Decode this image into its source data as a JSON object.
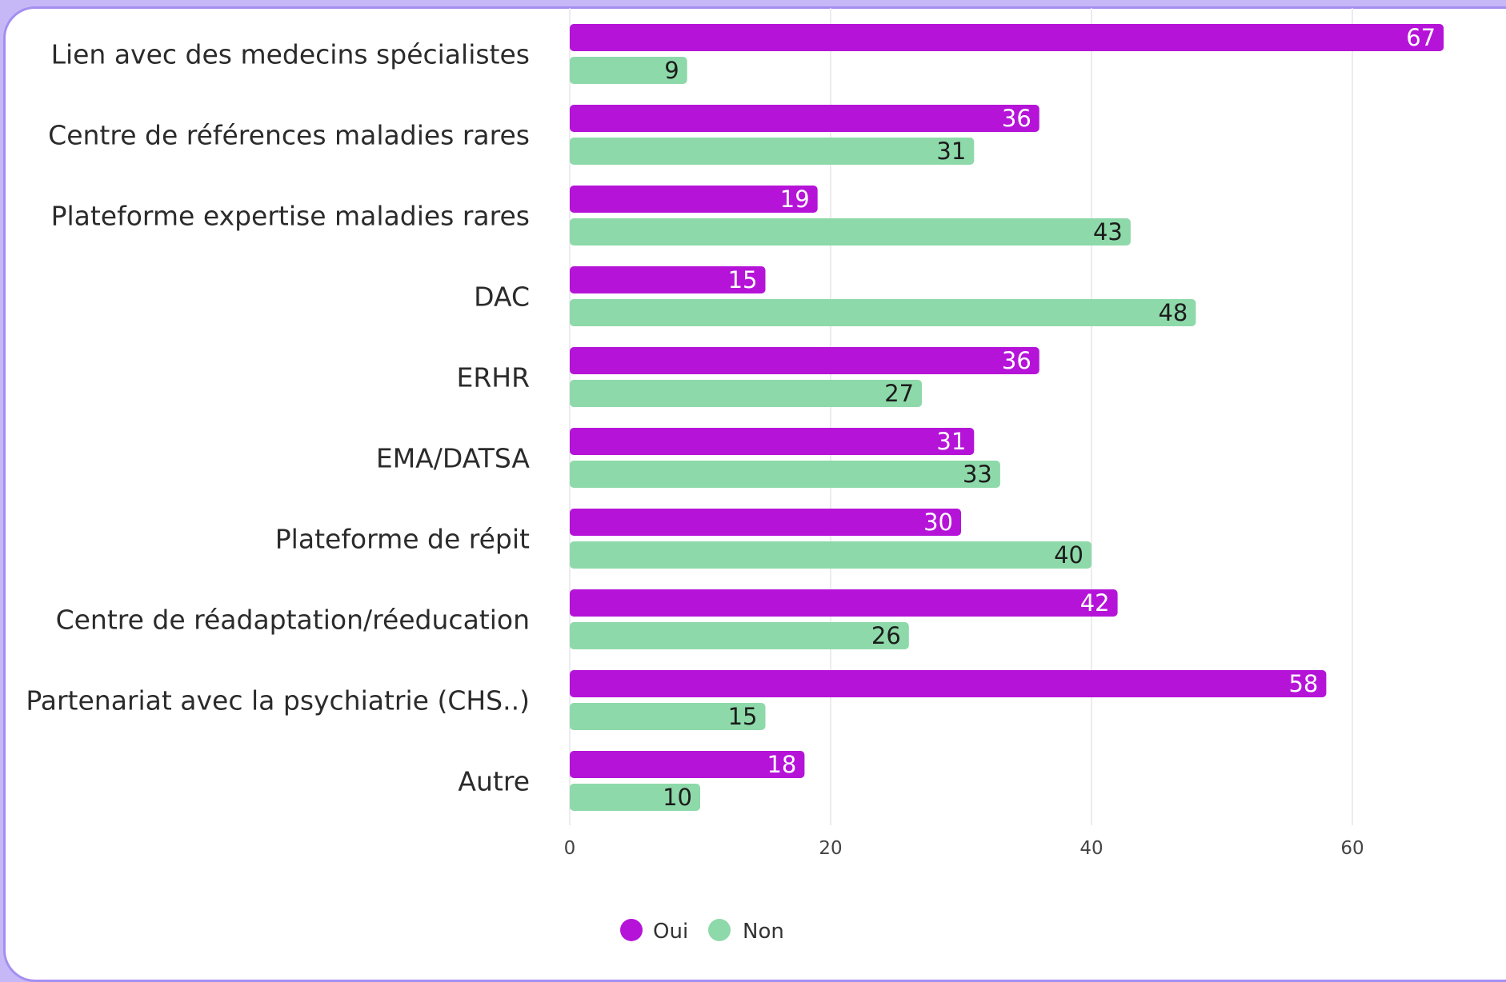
{
  "colors": {
    "oui": "#b514d8",
    "non": "#8ed9a9",
    "oui_label": "#ffffff",
    "non_label": "#1c1c1c",
    "grid": "#e6e6ec"
  },
  "chart_data": {
    "type": "bar",
    "orientation": "horizontal",
    "categories": [
      "Lien avec des medecins spécialistes",
      "Centre de références maladies rares",
      "Plateforme expertise maladies rares",
      "DAC",
      "ERHR",
      "EMA/DATSA",
      "Plateforme de répit",
      "Centre de réadaptation/réeducation",
      "Partenariat avec la psychiatrie (CHS..)",
      "Autre"
    ],
    "series": [
      {
        "name": "Oui",
        "values": [
          67,
          36,
          19,
          15,
          36,
          31,
          30,
          42,
          58,
          18
        ]
      },
      {
        "name": "Non",
        "values": [
          9,
          31,
          43,
          48,
          27,
          33,
          40,
          26,
          15,
          10
        ]
      }
    ],
    "xlim": [
      0,
      70
    ],
    "xticks": [
      "0",
      "20",
      "40",
      "60"
    ],
    "grid": true,
    "data_labels": true,
    "legend": "bottom-center",
    "title": "",
    "xlabel": "",
    "ylabel": ""
  }
}
